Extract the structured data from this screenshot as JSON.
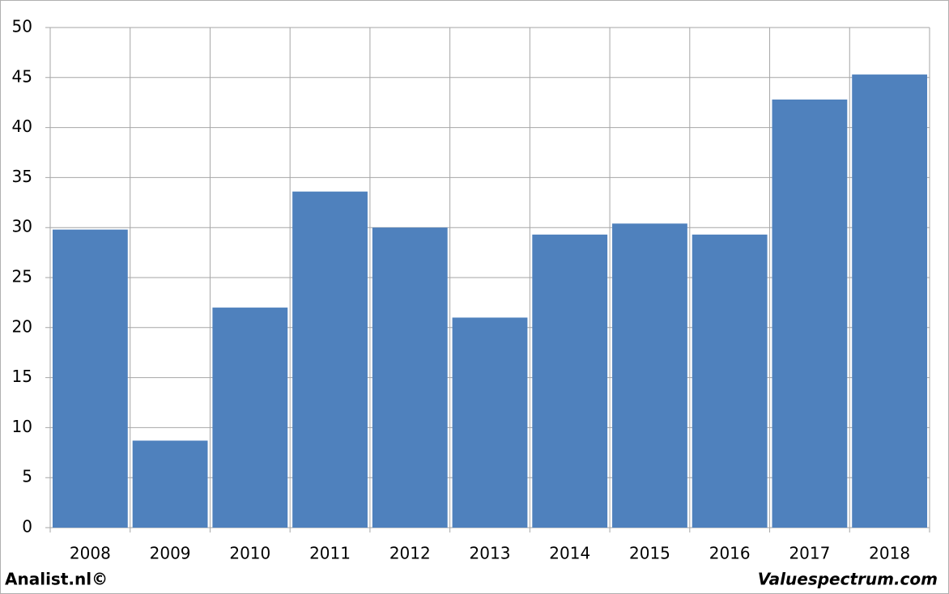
{
  "chart_data": {
    "type": "bar",
    "categories": [
      "2008",
      "2009",
      "2010",
      "2011",
      "2012",
      "2013",
      "2014",
      "2015",
      "2016",
      "2017",
      "2018"
    ],
    "values": [
      29.8,
      8.7,
      22.0,
      33.6,
      30.0,
      21.0,
      29.3,
      30.4,
      29.3,
      42.8,
      45.3
    ],
    "color": "#4f81bd",
    "ylim": [
      0,
      50
    ],
    "yticks": [
      0,
      5,
      10,
      15,
      20,
      25,
      30,
      35,
      40,
      45,
      50
    ],
    "grid": true
  },
  "footer": {
    "left": "Analist.nl©",
    "right": "Valuespectrum.com"
  }
}
